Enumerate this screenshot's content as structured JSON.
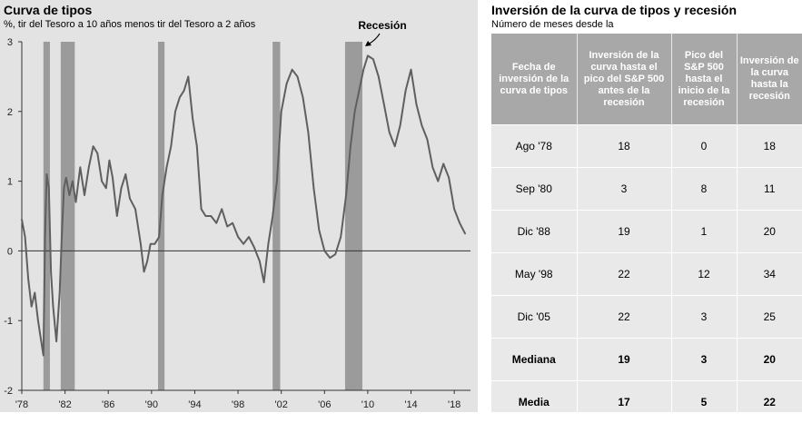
{
  "chart_data": {
    "type": "line",
    "title": "Curva de tipos",
    "subtitle": "%, tir del Tesoro a 10 años menos tir del Tesoro a 2 años",
    "annotation": "Recesión",
    "ylim": [
      -2,
      3
    ],
    "yticks": [
      "3",
      "2",
      "1",
      "0",
      "-1",
      "-2"
    ],
    "xlim": [
      1978,
      2019.5
    ],
    "xticks": [
      {
        "x": 1978,
        "label": "'78"
      },
      {
        "x": 1982,
        "label": "'82"
      },
      {
        "x": 1986,
        "label": "'86"
      },
      {
        "x": 1990,
        "label": "'90"
      },
      {
        "x": 1994,
        "label": "'94"
      },
      {
        "x": 1998,
        "label": "'98"
      },
      {
        "x": 2002,
        "label": "'02"
      },
      {
        "x": 2006,
        "label": "'06"
      },
      {
        "x": 2010,
        "label": "'10"
      },
      {
        "x": 2014,
        "label": "'14"
      },
      {
        "x": 2018,
        "label": "'18"
      }
    ],
    "recessions": [
      [
        1980.0,
        1980.6
      ],
      [
        1981.6,
        1982.9
      ],
      [
        1990.6,
        1991.2
      ],
      [
        2001.2,
        2001.9
      ],
      [
        2007.9,
        2009.5
      ]
    ],
    "series": [
      {
        "x": [
          1978.0,
          1978.3,
          1978.6,
          1978.9,
          1979.2,
          1979.5,
          1979.8,
          1980.0,
          1980.15,
          1980.3,
          1980.5,
          1980.7,
          1980.9,
          1981.2,
          1981.5,
          1981.7,
          1981.9,
          1982.1,
          1982.4,
          1982.7,
          1983.0,
          1983.4,
          1983.8,
          1984.2,
          1984.6,
          1985.0,
          1985.4,
          1985.8,
          1986.1,
          1986.4,
          1986.8,
          1987.2,
          1987.6,
          1988.0,
          1988.5,
          1989.0,
          1989.3,
          1989.6,
          1989.9,
          1990.3,
          1990.7,
          1991.0,
          1991.4,
          1991.8,
          1992.2,
          1992.6,
          1993.0,
          1993.4,
          1993.8,
          1994.2,
          1994.6,
          1995.0,
          1995.5,
          1996.0,
          1996.5,
          1997.0,
          1997.5,
          1998.0,
          1998.5,
          1999.0,
          1999.5,
          2000.0,
          2000.4,
          2000.8,
          2001.2,
          2001.6,
          2002.0,
          2002.5,
          2003.0,
          2003.5,
          2004.0,
          2004.5,
          2005.0,
          2005.5,
          2006.0,
          2006.5,
          2007.0,
          2007.5,
          2008.0,
          2008.4,
          2008.8,
          2009.2,
          2009.6,
          2010.0,
          2010.5,
          2011.0,
          2011.5,
          2012.0,
          2012.5,
          2013.0,
          2013.5,
          2014.0,
          2014.5,
          2015.0,
          2015.5,
          2016.0,
          2016.5,
          2017.0,
          2017.5,
          2018.0,
          2018.5,
          2019.0
        ],
        "y": [
          0.45,
          0.2,
          -0.4,
          -0.8,
          -0.6,
          -1.0,
          -1.3,
          -1.5,
          0.2,
          1.1,
          0.9,
          -0.3,
          -0.8,
          -1.3,
          -0.6,
          0.2,
          0.9,
          1.05,
          0.8,
          1.0,
          0.7,
          1.2,
          0.8,
          1.2,
          1.5,
          1.4,
          1.0,
          0.9,
          1.3,
          1.05,
          0.5,
          0.9,
          1.1,
          0.75,
          0.6,
          0.1,
          -0.3,
          -0.15,
          0.1,
          0.1,
          0.2,
          0.8,
          1.2,
          1.5,
          2.0,
          2.2,
          2.3,
          2.5,
          1.9,
          1.5,
          0.6,
          0.5,
          0.5,
          0.4,
          0.6,
          0.35,
          0.4,
          0.2,
          0.1,
          0.2,
          0.05,
          -0.15,
          -0.45,
          0.1,
          0.5,
          1.0,
          2.0,
          2.4,
          2.6,
          2.5,
          2.2,
          1.7,
          0.9,
          0.3,
          0.0,
          -0.1,
          -0.05,
          0.2,
          0.8,
          1.5,
          2.0,
          2.3,
          2.6,
          2.8,
          2.75,
          2.5,
          2.1,
          1.7,
          1.5,
          1.8,
          2.3,
          2.6,
          2.1,
          1.8,
          1.6,
          1.2,
          1.0,
          1.25,
          1.05,
          0.6,
          0.4,
          0.25
        ]
      }
    ]
  },
  "table": {
    "title": "Inversión de la curva de tipos y recesión",
    "subtitle": "Número de meses desde la",
    "headers": [
      "Fecha de inversión de la curva de tipos",
      "Inversión de la curva hasta el pico del S&P 500 antes de la recesión",
      "Pico del S&P 500 hasta el inicio de la recesión",
      "Inversión de la curva hasta la recesión"
    ],
    "rows": [
      [
        "Ago '78",
        "18",
        "0",
        "18"
      ],
      [
        "Sep '80",
        "3",
        "8",
        "11"
      ],
      [
        "Dic '88",
        "19",
        "1",
        "20"
      ],
      [
        "May '98",
        "22",
        "12",
        "34"
      ],
      [
        "Dic '05",
        "22",
        "3",
        "25"
      ],
      [
        "Mediana",
        "19",
        "3",
        "20"
      ],
      [
        "Media",
        "17",
        "5",
        "22"
      ]
    ]
  }
}
